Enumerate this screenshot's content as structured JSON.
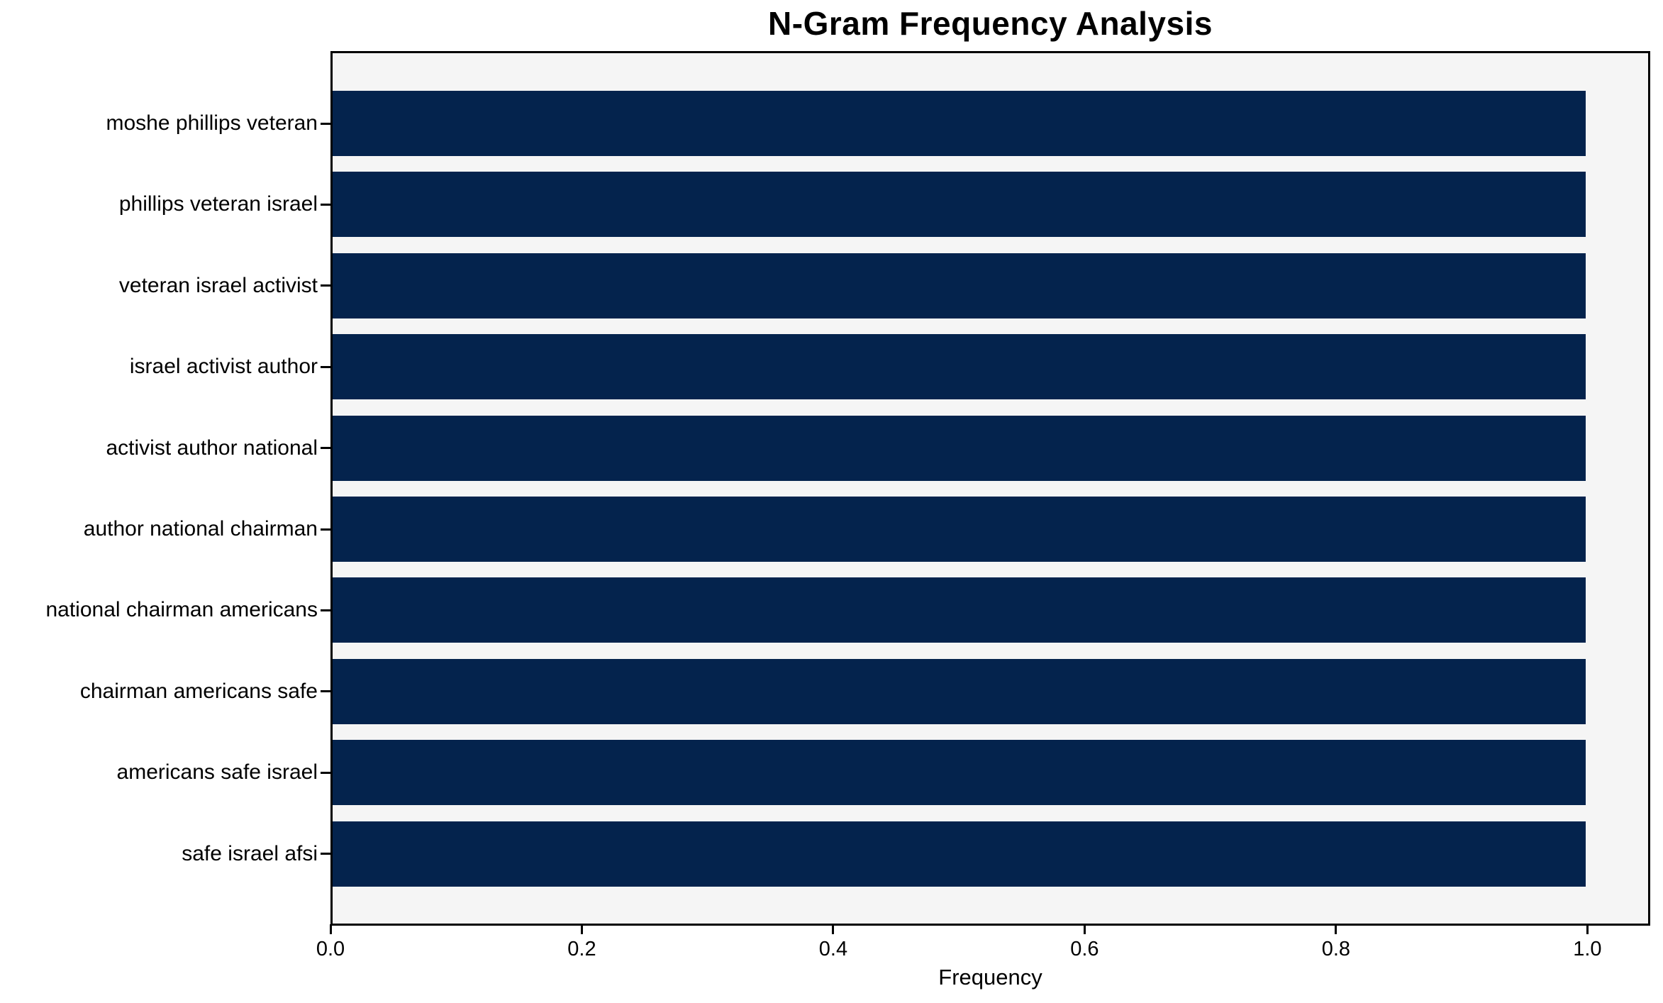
{
  "chart_data": {
    "type": "bar",
    "orientation": "horizontal",
    "title": "N-Gram Frequency Analysis",
    "xlabel": "Frequency",
    "ylabel": "",
    "categories": [
      "moshe phillips veteran",
      "phillips veteran israel",
      "veteran israel activist",
      "israel activist author",
      "activist author national",
      "author national chairman",
      "national chairman americans",
      "chairman americans safe",
      "americans safe israel",
      "safe israel afsi"
    ],
    "values": [
      1.0,
      1.0,
      1.0,
      1.0,
      1.0,
      1.0,
      1.0,
      1.0,
      1.0,
      1.0
    ],
    "x_ticks": [
      "0.0",
      "0.2",
      "0.4",
      "0.6",
      "0.8",
      "1.0"
    ],
    "xlim": [
      0.0,
      1.05
    ],
    "grid": false,
    "legend": false,
    "bar_color": "#04234d",
    "plot_background": "#f5f5f5",
    "figure_background": "#ffffff",
    "spine_color": "#000000"
  }
}
